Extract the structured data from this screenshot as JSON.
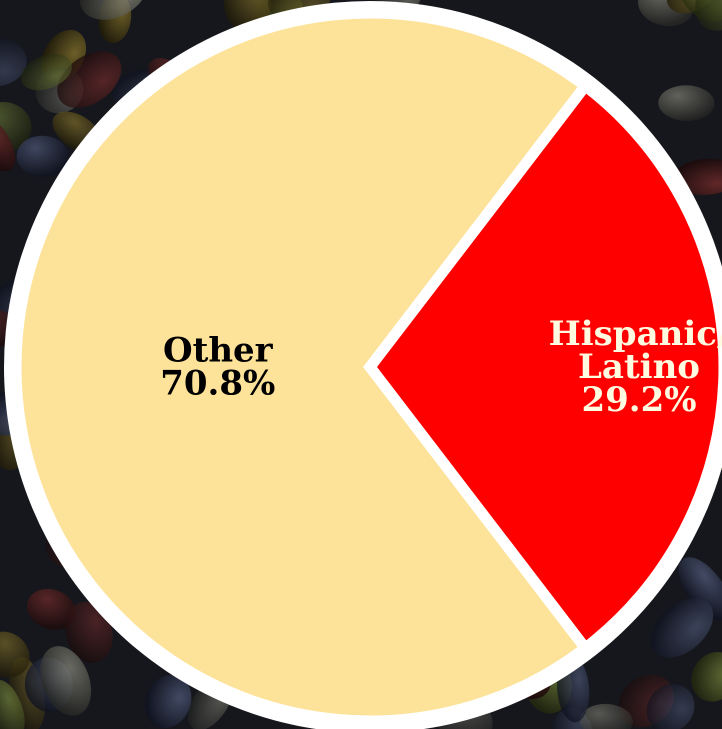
{
  "chart_data": {
    "type": "pie",
    "title": "",
    "slices": [
      {
        "name_lines": [
          "Hispanic/",
          "Latino"
        ],
        "value": 29.2,
        "value_label": "29.2%",
        "color": "#ff0000",
        "label_color": "#fffbe0"
      },
      {
        "name_lines": [
          "Other"
        ],
        "value": 70.8,
        "value_label": "70.8%",
        "color": "#fde39a",
        "label_color": "#000000"
      }
    ],
    "slice_border_color": "#ffffff",
    "background": "dark jelly-bean photo"
  }
}
